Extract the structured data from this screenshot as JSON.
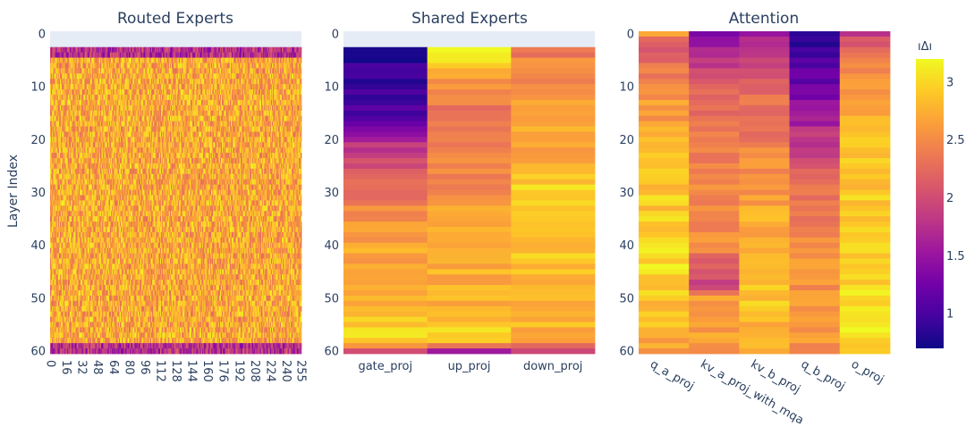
{
  "chart_data": {
    "type": "heatmap",
    "colorscale": "plasma",
    "colors": [
      "#0d0887",
      "#46039f",
      "#7201a8",
      "#9c179e",
      "#bd3786",
      "#d8576b",
      "#ed7953",
      "#fb9f3a",
      "#fdca26",
      "#f0f921"
    ],
    "colorbar": {
      "title": "ıΔı",
      "range": [
        0.7,
        3.2
      ],
      "ticks": [
        1,
        1.5,
        2,
        2.5,
        3
      ],
      "tick_labels": [
        "1",
        "1.5",
        "2",
        "2.5",
        "3"
      ]
    },
    "ylabel": "Layer Index",
    "y_range": [
      0,
      60
    ],
    "y_ticks": [
      0,
      10,
      20,
      30,
      40,
      50,
      60
    ],
    "y_tick_labels": [
      "0",
      "10",
      "20",
      "30",
      "40",
      "50",
      "60"
    ],
    "first_layer_with_data": 3,
    "panels": [
      {
        "title": "Routed Experts",
        "num_columns": 256,
        "x_ticks": [
          0,
          16,
          32,
          48,
          64,
          80,
          96,
          112,
          128,
          144,
          160,
          176,
          192,
          208,
          224,
          240,
          255
        ],
        "x_tick_labels": [
          "0",
          "16",
          "32",
          "48",
          "64",
          "80",
          "96",
          "112",
          "128",
          "144",
          "160",
          "176",
          "192",
          "208",
          "224",
          "240",
          "255"
        ],
        "typical_value": 2.7,
        "low_value_edge_layers": [
          3,
          4,
          59,
          60
        ]
      },
      {
        "title": "Shared Experts",
        "columns": [
          "gate_proj",
          "up_proj",
          "down_proj"
        ],
        "layer_values": {
          "gate_proj": [
            [
              3,
              0.8
            ],
            [
              10,
              1.0
            ],
            [
              15,
              0.95
            ],
            [
              18,
              1.3
            ],
            [
              20,
              1.6
            ],
            [
              22,
              1.9
            ],
            [
              25,
              2.1
            ],
            [
              30,
              2.35
            ],
            [
              35,
              2.6
            ],
            [
              40,
              2.65
            ],
            [
              45,
              2.7
            ],
            [
              50,
              2.75
            ],
            [
              54,
              2.85
            ],
            [
              58,
              3.0
            ],
            [
              60,
              2.0
            ]
          ],
          "up_proj": [
            [
              3,
              3.1
            ],
            [
              6,
              3.0
            ],
            [
              8,
              2.6
            ],
            [
              12,
              2.4
            ],
            [
              20,
              2.35
            ],
            [
              30,
              2.55
            ],
            [
              40,
              2.7
            ],
            [
              50,
              2.75
            ],
            [
              55,
              2.9
            ],
            [
              58,
              3.05
            ],
            [
              60,
              1.4
            ]
          ],
          "down_proj": [
            [
              3,
              2.4
            ],
            [
              10,
              2.5
            ],
            [
              15,
              2.7
            ],
            [
              20,
              2.6
            ],
            [
              25,
              2.8
            ],
            [
              30,
              3.0
            ],
            [
              40,
              2.9
            ],
            [
              50,
              2.7
            ],
            [
              55,
              2.8
            ],
            [
              58,
              2.75
            ],
            [
              60,
              2.0
            ]
          ]
        }
      },
      {
        "title": "Attention",
        "columns": [
          "q_a_proj",
          "kv_a_proj_with_mqa",
          "kv_b_proj",
          "q_b_proj",
          "o_proj"
        ],
        "layer_values": {
          "q_a_proj": [
            [
              0,
              2.6
            ],
            [
              2,
              2.0
            ],
            [
              5,
              2.3
            ],
            [
              10,
              2.5
            ],
            [
              20,
              2.75
            ],
            [
              30,
              2.9
            ],
            [
              40,
              3.0
            ],
            [
              45,
              3.05
            ],
            [
              50,
              2.9
            ],
            [
              55,
              2.8
            ],
            [
              60,
              2.7
            ]
          ],
          "kv_a_proj_with_mqa": [
            [
              0,
              1.2
            ],
            [
              5,
              1.8
            ],
            [
              10,
              2.2
            ],
            [
              20,
              2.4
            ],
            [
              30,
              2.5
            ],
            [
              40,
              2.55
            ],
            [
              47,
              1.9
            ],
            [
              50,
              2.6
            ],
            [
              55,
              2.7
            ],
            [
              60,
              2.6
            ]
          ],
          "kv_b_proj": [
            [
              0,
              1.6
            ],
            [
              5,
              1.9
            ],
            [
              10,
              2.2
            ],
            [
              20,
              2.4
            ],
            [
              30,
              2.6
            ],
            [
              40,
              2.8
            ],
            [
              50,
              2.9
            ],
            [
              55,
              2.8
            ],
            [
              60,
              2.7
            ]
          ],
          "q_b_proj": [
            [
              0,
              0.75
            ],
            [
              5,
              1.0
            ],
            [
              10,
              1.25
            ],
            [
              15,
              1.5
            ],
            [
              20,
              1.85
            ],
            [
              25,
              2.1
            ],
            [
              30,
              2.35
            ],
            [
              40,
              2.5
            ],
            [
              50,
              2.6
            ],
            [
              55,
              2.7
            ],
            [
              60,
              2.5
            ]
          ],
          "o_proj": [
            [
              0,
              1.8
            ],
            [
              3,
              2.4
            ],
            [
              10,
              2.6
            ],
            [
              20,
              2.8
            ],
            [
              30,
              2.9
            ],
            [
              40,
              2.95
            ],
            [
              50,
              3.0
            ],
            [
              55,
              3.1
            ],
            [
              60,
              2.9
            ]
          ]
        }
      }
    ]
  }
}
